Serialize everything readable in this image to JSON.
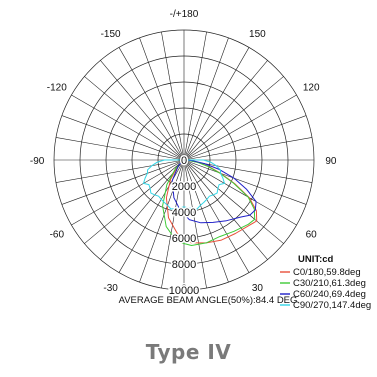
{
  "chart_data": {
    "type": "polar",
    "radial_unit": "UNIT:cd",
    "radial_ticks": [
      "0",
      "2000",
      "4000",
      "6000",
      "8000",
      "10000"
    ],
    "radial_range": [
      0,
      10000
    ],
    "angle_ticks": [
      "-/+180",
      "150",
      "120",
      "90",
      "60",
      "30",
      "0",
      "-30",
      "-60",
      "-90",
      "-120",
      "-150"
    ],
    "angle_tick_values": [
      180,
      150,
      120,
      90,
      60,
      30,
      0,
      -30,
      -60,
      -90,
      -120,
      -150
    ],
    "grid": true,
    "series": [
      {
        "name": "C0/180,59.8deg",
        "color": "#e8503a",
        "points": [
          [
            -60,
            60
          ],
          [
            -45,
            700
          ],
          [
            -35,
            1800
          ],
          [
            -25,
            3200
          ],
          [
            -15,
            4600
          ],
          [
            -5,
            5700
          ],
          [
            5,
            6400
          ],
          [
            15,
            6600
          ],
          [
            25,
            6800
          ],
          [
            35,
            6900
          ],
          [
            45,
            7100
          ],
          [
            50,
            7300
          ],
          [
            55,
            6800
          ],
          [
            60,
            5800
          ],
          [
            65,
            4300
          ],
          [
            70,
            3000
          ],
          [
            75,
            2000
          ],
          [
            80,
            1200
          ],
          [
            85,
            500
          ],
          [
            90,
            100
          ]
        ]
      },
      {
        "name": "C30/210,61.3deg",
        "color": "#3ecb37",
        "points": [
          [
            -60,
            80
          ],
          [
            -45,
            900
          ],
          [
            -35,
            2300
          ],
          [
            -25,
            3900
          ],
          [
            -15,
            5300
          ],
          [
            -5,
            6300
          ],
          [
            5,
            6600
          ],
          [
            15,
            6600
          ],
          [
            25,
            6500
          ],
          [
            35,
            6700
          ],
          [
            45,
            7000
          ],
          [
            50,
            7100
          ],
          [
            55,
            6600
          ],
          [
            60,
            5700
          ],
          [
            65,
            4200
          ],
          [
            70,
            2900
          ],
          [
            75,
            1900
          ],
          [
            80,
            1100
          ],
          [
            85,
            400
          ],
          [
            90,
            80
          ]
        ]
      },
      {
        "name": "C60/240,69.4deg",
        "color": "#2020c8",
        "points": [
          [
            -60,
            60
          ],
          [
            -45,
            600
          ],
          [
            -30,
            1800
          ],
          [
            -15,
            3000
          ],
          [
            -5,
            3800
          ],
          [
            5,
            4600
          ],
          [
            15,
            5000
          ],
          [
            25,
            5300
          ],
          [
            35,
            5700
          ],
          [
            45,
            6200
          ],
          [
            50,
            6600
          ],
          [
            55,
            6700
          ],
          [
            60,
            6400
          ],
          [
            65,
            5300
          ],
          [
            70,
            4100
          ],
          [
            75,
            2800
          ],
          [
            80,
            1600
          ],
          [
            85,
            700
          ],
          [
            90,
            150
          ]
        ]
      },
      {
        "name": "C90/270,147.4deg",
        "color": "#33d6e6",
        "points": [
          [
            -100,
            40
          ],
          [
            -90,
            1500
          ],
          [
            -85,
            2100
          ],
          [
            -80,
            2500
          ],
          [
            -75,
            2900
          ],
          [
            -70,
            3000
          ],
          [
            -65,
            3300
          ],
          [
            -60,
            3600
          ],
          [
            -55,
            3300
          ],
          [
            -50,
            3400
          ],
          [
            -45,
            3600
          ],
          [
            -40,
            3500
          ],
          [
            -35,
            3400
          ],
          [
            -30,
            3500
          ],
          [
            -25,
            3600
          ],
          [
            -20,
            3700
          ],
          [
            -15,
            3900
          ],
          [
            -10,
            3800
          ],
          [
            -5,
            3700
          ],
          [
            0,
            3600
          ],
          [
            5,
            3700
          ],
          [
            10,
            3800
          ],
          [
            15,
            3900
          ],
          [
            20,
            3700
          ],
          [
            25,
            3600
          ],
          [
            30,
            3500
          ],
          [
            35,
            3400
          ],
          [
            40,
            3500
          ],
          [
            45,
            3600
          ],
          [
            50,
            3400
          ],
          [
            55,
            3300
          ],
          [
            60,
            3600
          ],
          [
            65,
            3300
          ],
          [
            70,
            3000
          ],
          [
            75,
            2900
          ],
          [
            80,
            2500
          ],
          [
            85,
            2100
          ],
          [
            90,
            1500
          ],
          [
            100,
            40
          ]
        ]
      }
    ],
    "annotation": "AVERAGE BEAM ANGLE(50%):84.4 DEG",
    "footer": "Type IV"
  }
}
